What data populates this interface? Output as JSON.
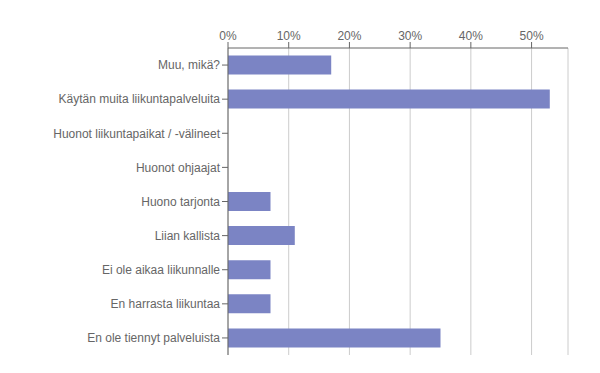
{
  "chart_data": {
    "type": "bar",
    "orientation": "horizontal",
    "categories": [
      "En ole tiennyt palveluista",
      "En harrasta liikuntaa",
      "Ei ole aikaa liikunnalle",
      "Liian kallista",
      "Huono tarjonta",
      "Huonot ohjaajat",
      "Huonot liikuntapaikat / -välineet",
      "Käytän muita liikuntapalveluita",
      "Muu, mikä?"
    ],
    "values": [
      35,
      7,
      7,
      11,
      7,
      0,
      0,
      53,
      17
    ],
    "color": "#7b84c4",
    "xlim": [
      0,
      56
    ],
    "xticks": [
      {
        "value": 0,
        "label": "0%"
      },
      {
        "value": 10,
        "label": "10%"
      },
      {
        "value": 20,
        "label": "20%"
      },
      {
        "value": 30,
        "label": "30%"
      },
      {
        "value": 40,
        "label": "40%"
      },
      {
        "value": 50,
        "label": "50%"
      }
    ],
    "grid": true
  }
}
